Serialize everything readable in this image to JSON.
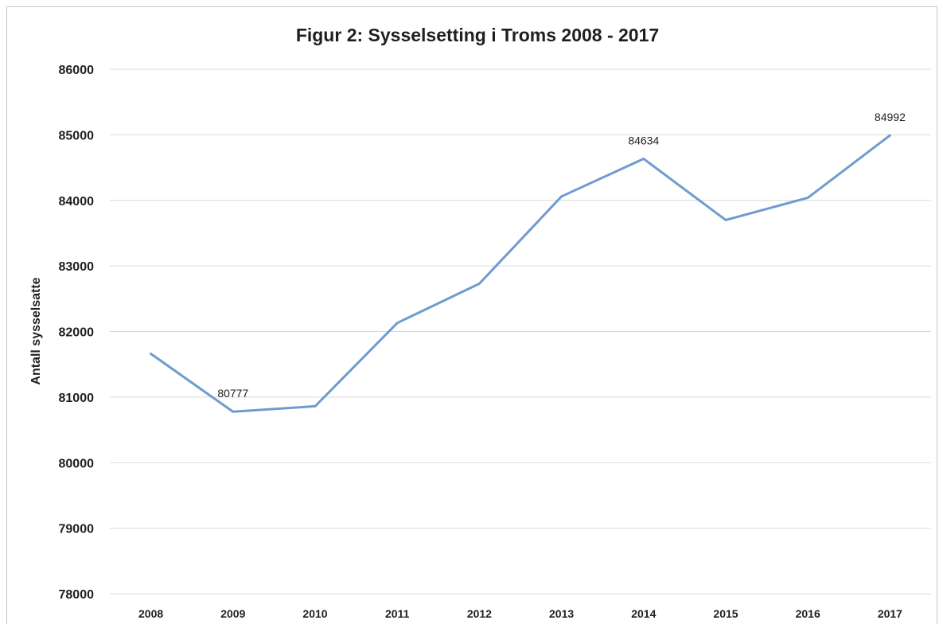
{
  "chart_data": {
    "type": "line",
    "title": "Figur 2: Sysselsetting i Troms 2008 - 2017",
    "xlabel": "",
    "ylabel": "Antall sysselsatte",
    "categories": [
      "2008",
      "2009",
      "2010",
      "2011",
      "2012",
      "2013",
      "2014",
      "2015",
      "2016",
      "2017"
    ],
    "series": [
      {
        "values": [
          81660,
          80777,
          80860,
          82130,
          82730,
          84060,
          84634,
          83700,
          84040,
          84992
        ],
        "color": "#6f9bd0"
      }
    ],
    "data_labels": [
      {
        "index": 1,
        "text": "80777"
      },
      {
        "index": 6,
        "text": "84634"
      },
      {
        "index": 9,
        "text": "84992"
      }
    ],
    "ylim": [
      78000,
      86000
    ],
    "yticks": [
      "78000",
      "79000",
      "80000",
      "81000",
      "82000",
      "83000",
      "84000",
      "85000",
      "86000"
    ],
    "grid": true,
    "legend": "none"
  }
}
